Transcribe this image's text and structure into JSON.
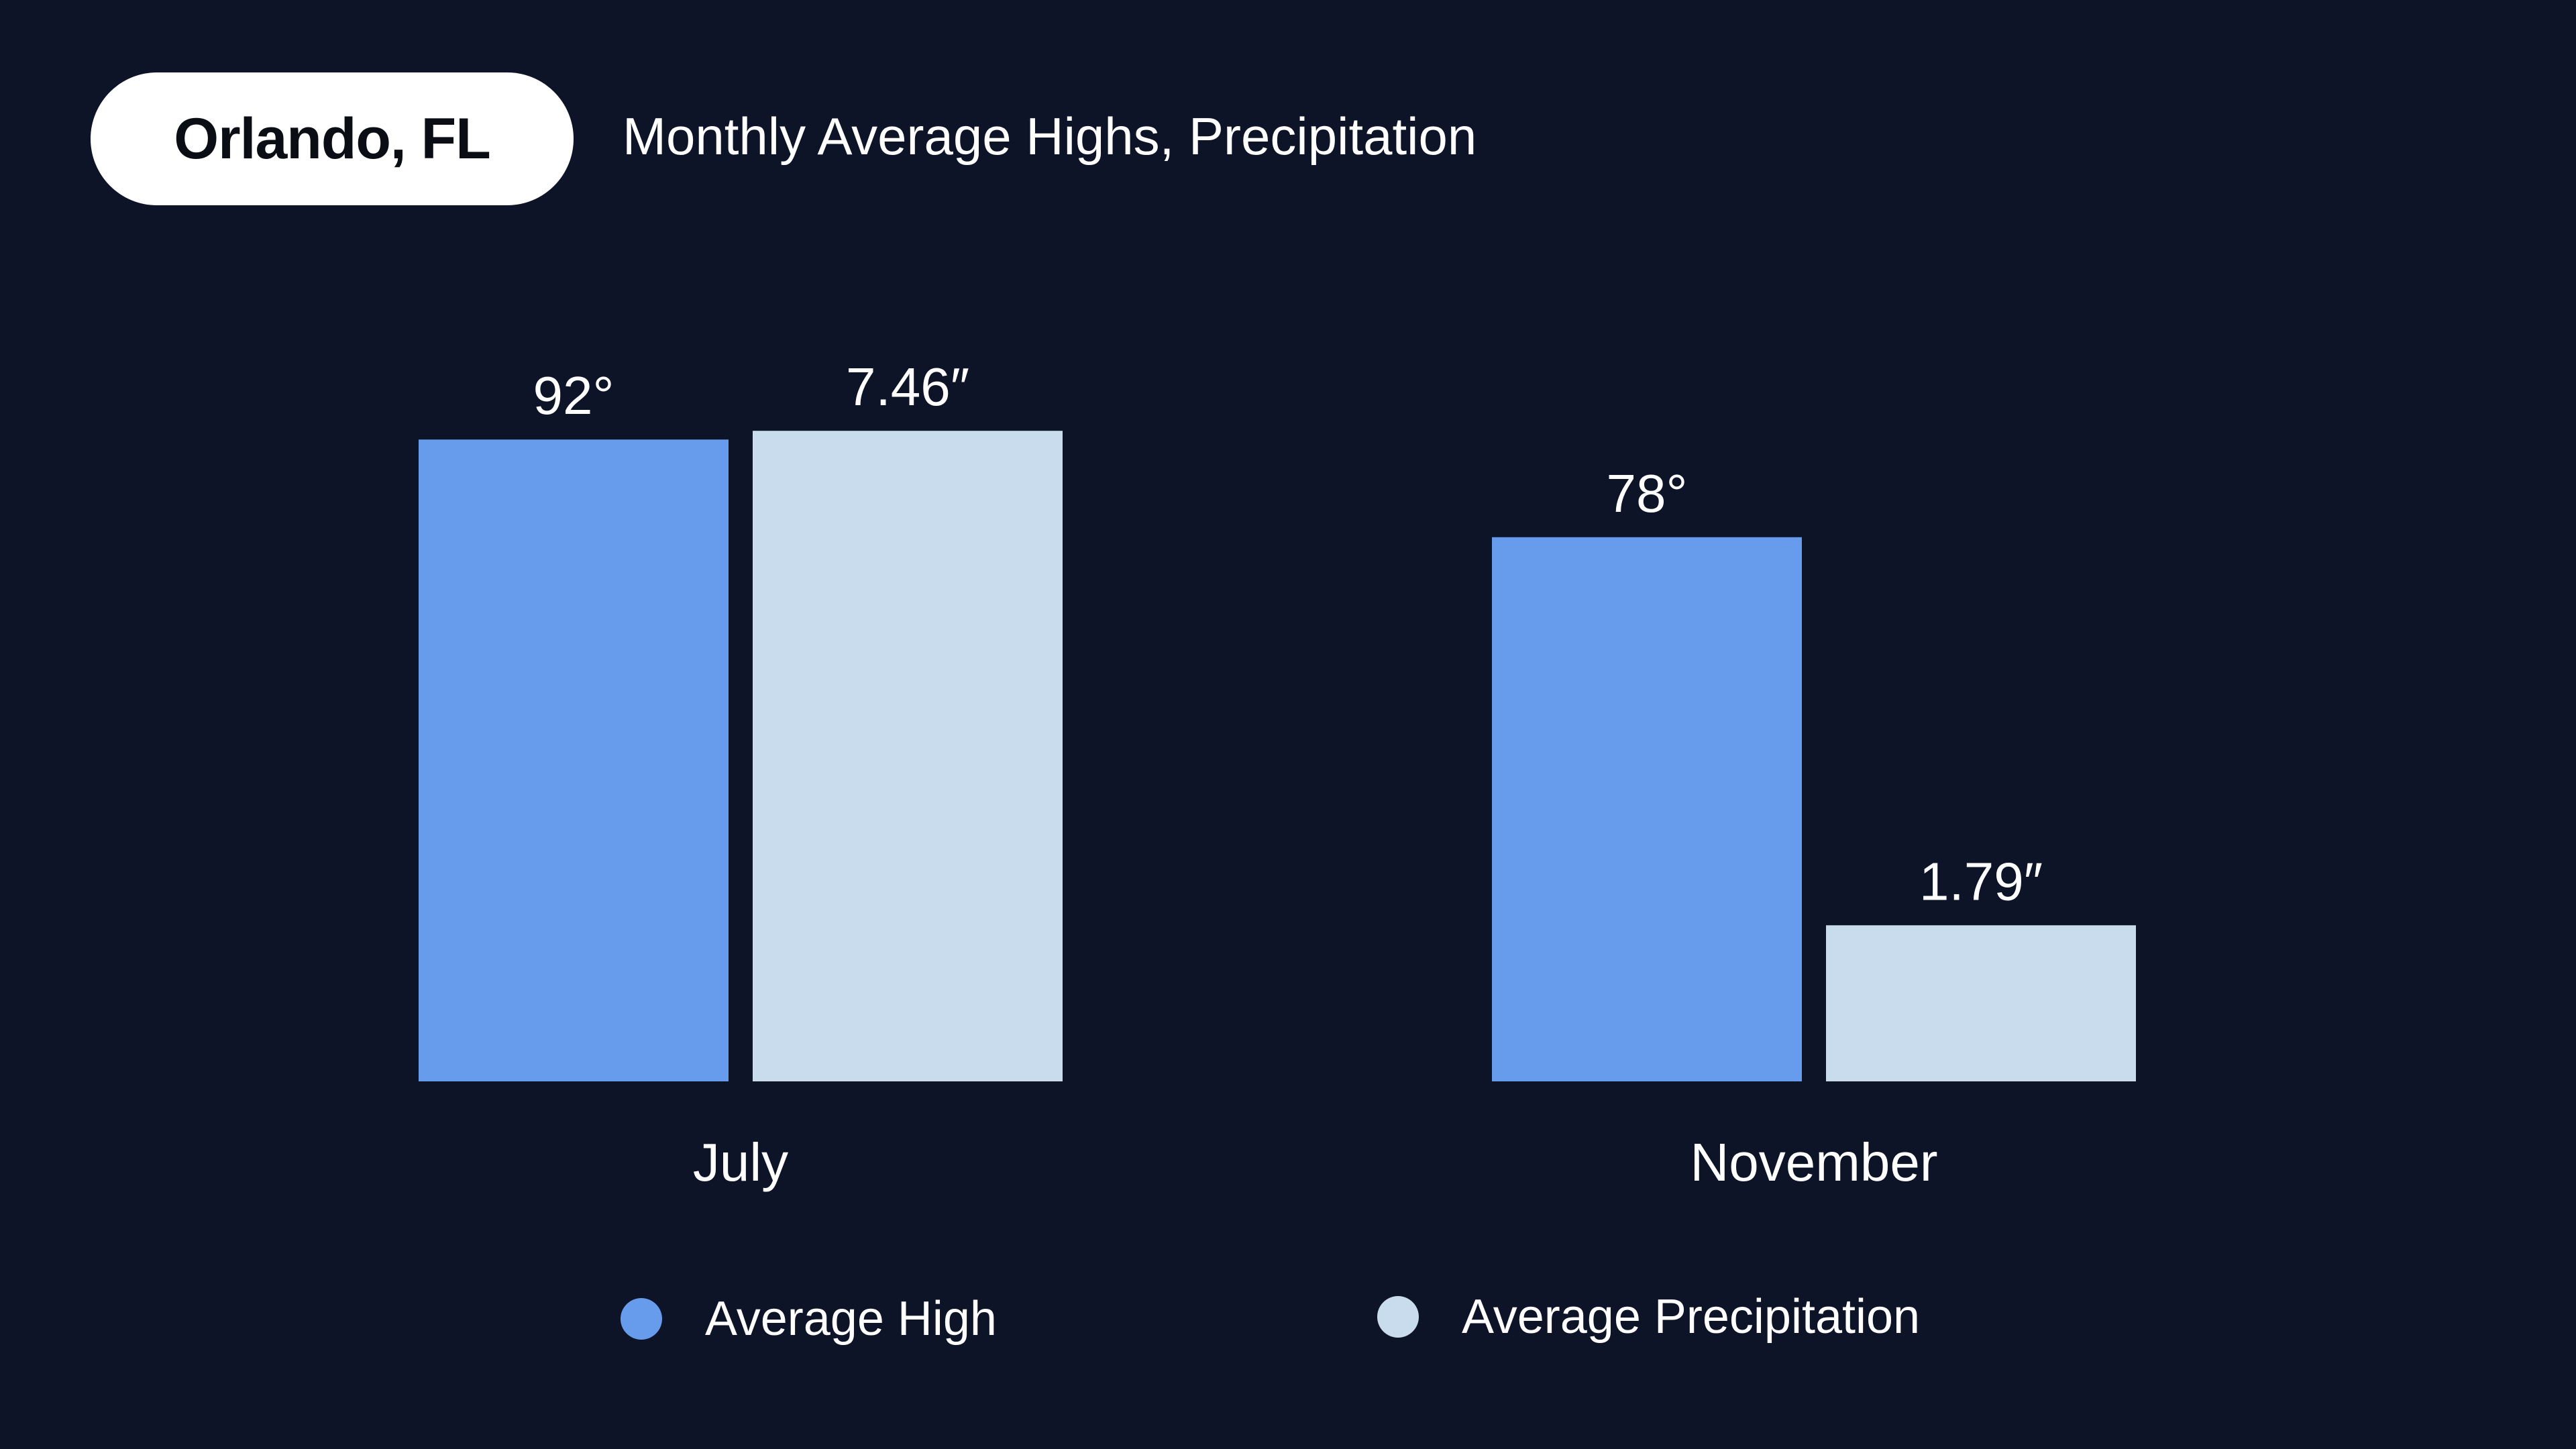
{
  "header": {
    "city": "Orlando, FL",
    "subtitle": "Monthly Average Highs, Precipitation"
  },
  "colors": {
    "background": "#0e1428",
    "average_high": "#679cec",
    "average_precipitation": "#c9dcee",
    "text": "#ffffff",
    "pill": "#ffffff",
    "pill_text": "#0a0d14"
  },
  "chart_data": {
    "type": "bar",
    "title": "Monthly Average Highs, Precipitation",
    "categories": [
      "July",
      "November"
    ],
    "series": [
      {
        "name": "Average High",
        "values": [
          92,
          78
        ],
        "labels": [
          "92°",
          "78°"
        ],
        "unit": "°F",
        "color": "#679cec"
      },
      {
        "name": "Average Precipitation",
        "values": [
          7.46,
          1.79
        ],
        "labels": [
          "7.46″",
          "1.79″"
        ],
        "unit": "in",
        "color": "#c9dcee"
      }
    ],
    "xlabel": "",
    "ylabel": "",
    "grid": false,
    "legend_position": "bottom"
  }
}
